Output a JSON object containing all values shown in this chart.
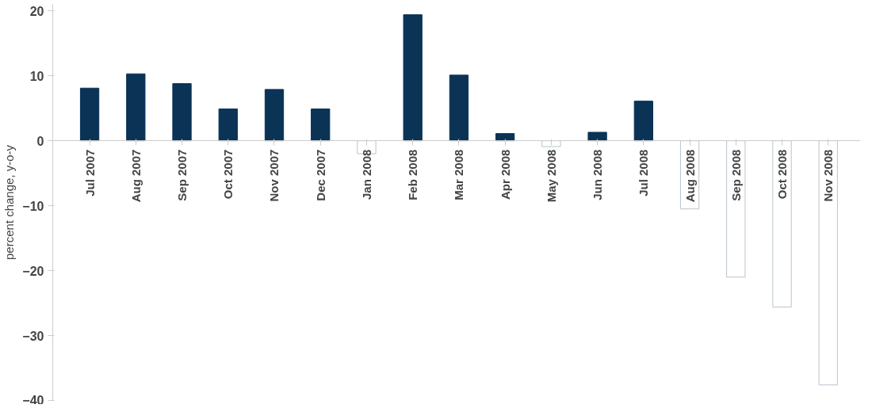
{
  "chart_data": {
    "type": "bar",
    "ylabel": "percent change, y-o-y",
    "categories": [
      "Jul 2007",
      "Aug 2007",
      "Sep 2007",
      "Oct 2007",
      "Nov 2007",
      "Dec 2007",
      "Jan 2008",
      "Feb 2008",
      "Mar 2008",
      "Apr 2008",
      "May 2008",
      "Jun 2008",
      "Jul 2008",
      "Aug 2008",
      "Sep 2008",
      "Oct 2008",
      "Nov 2008"
    ],
    "values": [
      8.1,
      10.3,
      8.8,
      4.9,
      7.9,
      4.9,
      -2.0,
      19.4,
      10.1,
      1.1,
      -0.9,
      1.3,
      6.1,
      -10.5,
      -21.0,
      -25.6,
      -37.6
    ],
    "colors": [
      "#0a3356",
      "#0a3356",
      "#0a3356",
      "#0a3356",
      "#0a3356",
      "#0a3356",
      "#ffffff",
      "#0a3356",
      "#0a3356",
      "#0a3356",
      "#ffffff",
      "#0a3356",
      "#0a3356",
      "#ffffff",
      "#ffffff",
      "#ffffff",
      "#ffffff"
    ],
    "ylim": [
      -40,
      21
    ],
    "yticks": [
      -40,
      -30,
      -20,
      -10,
      0,
      10,
      20
    ],
    "grid": false
  }
}
